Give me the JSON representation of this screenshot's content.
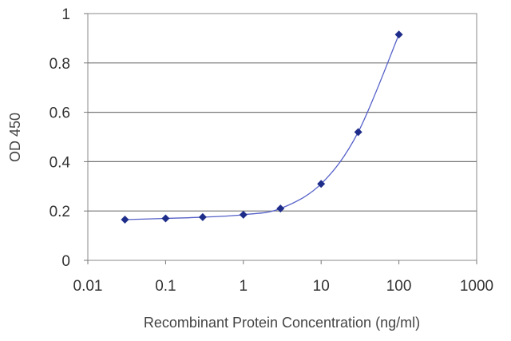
{
  "chart_data": {
    "type": "scatter",
    "title": "",
    "xlabel": "Recombinant Protein Concentration (ng/ml)",
    "ylabel": "OD 450",
    "x_scale": "log",
    "xlim": [
      0.01,
      1000
    ],
    "ylim": [
      0,
      1
    ],
    "x_ticks": [
      0.01,
      0.1,
      1,
      10,
      100,
      1000
    ],
    "x_tick_labels": [
      "0.01",
      "0.1",
      "1",
      "10",
      "100",
      "1000"
    ],
    "y_ticks": [
      0,
      0.2,
      0.4,
      0.6,
      0.8,
      1
    ],
    "y_tick_labels": [
      "0",
      "0.2",
      "0.4",
      "0.6",
      "0.8",
      "1"
    ],
    "grid": "horizontal",
    "legend": "none",
    "series": [
      {
        "x": [
          0.03,
          0.1,
          0.3,
          1,
          3,
          10,
          30,
          100
        ],
        "y": [
          0.165,
          0.17,
          0.175,
          0.185,
          0.21,
          0.31,
          0.52,
          0.915
        ],
        "color": "#1f2d8a",
        "line_color": "#5560c8",
        "marker": "diamond",
        "fit_curve": true
      }
    ]
  }
}
